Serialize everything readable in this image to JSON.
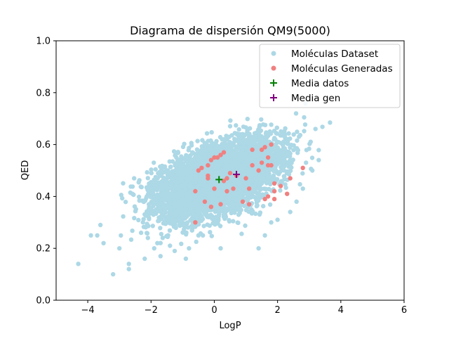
{
  "chart_data": {
    "type": "scatter",
    "title": "Diagrama de dispersión QM9(5000)",
    "xlabel": "LogP",
    "ylabel": "QED",
    "xlim": [
      -5,
      6
    ],
    "ylim": [
      0.0,
      1.0
    ],
    "xticks": [
      "−4",
      "−2",
      "0",
      "2",
      "4",
      "6"
    ],
    "xtick_values": [
      -4,
      -2,
      0,
      2,
      4,
      6
    ],
    "yticks": [
      "0.0",
      "0.2",
      "0.4",
      "0.6",
      "0.8",
      "1.0"
    ],
    "ytick_values": [
      0.0,
      0.2,
      0.4,
      0.6,
      0.8,
      1.0
    ],
    "grid": false,
    "legend_position": "top-right",
    "series": [
      {
        "name": "Moléculas Dataset",
        "color": "#add8e6",
        "marker": "circle",
        "cloud": {
          "count": 5000,
          "x_mean": 0.1,
          "x_std": 0.95,
          "y_mean": 0.465,
          "y_std": 0.065,
          "slope": 0.04
        },
        "points": [
          [
            -4.3,
            0.14
          ],
          [
            -3.9,
            0.25
          ],
          [
            -3.7,
            0.25
          ],
          [
            -3.6,
            0.29
          ],
          [
            -3.5,
            0.22
          ],
          [
            -3.2,
            0.1
          ],
          [
            -3.0,
            0.2
          ],
          [
            -2.7,
            0.14
          ],
          [
            -2.7,
            0.12
          ],
          [
            -2.2,
            0.16
          ],
          [
            -2.1,
            0.24
          ],
          [
            -1.9,
            0.2
          ],
          [
            -1.7,
            0.17
          ],
          [
            -1.4,
            0.21
          ],
          [
            -0.9,
            0.16
          ],
          [
            -0.8,
            0.2
          ],
          [
            0.2,
            0.2
          ],
          [
            1.4,
            0.2
          ],
          [
            1.6,
            0.25
          ],
          [
            -0.5,
            0.25
          ],
          [
            2.0,
            0.31
          ],
          [
            2.4,
            0.34
          ],
          [
            2.6,
            0.38
          ],
          [
            3.3,
            0.54
          ],
          [
            3.1,
            0.5
          ],
          [
            2.9,
            0.53
          ],
          [
            1.7,
            0.64
          ],
          [
            1.4,
            0.65
          ],
          [
            0.9,
            0.64
          ],
          [
            0.3,
            0.62
          ],
          [
            -0.4,
            0.58
          ],
          [
            -1.2,
            0.55
          ],
          [
            2.8,
            0.43
          ],
          [
            1.8,
            0.3
          ],
          [
            -1.8,
            0.22
          ]
        ]
      },
      {
        "name": "Moléculas Generadas",
        "color": "#f08080",
        "marker": "circle",
        "points": [
          [
            -0.6,
            0.3
          ],
          [
            -0.6,
            0.42
          ],
          [
            -0.5,
            0.5
          ],
          [
            -0.4,
            0.51
          ],
          [
            -0.3,
            0.38
          ],
          [
            -0.2,
            0.52
          ],
          [
            -0.2,
            0.48
          ],
          [
            -0.1,
            0.54
          ],
          [
            -0.1,
            0.36
          ],
          [
            -0.2,
            0.47
          ],
          [
            0.0,
            0.43
          ],
          [
            0.0,
            0.55
          ],
          [
            0.1,
            0.55
          ],
          [
            0.2,
            0.37
          ],
          [
            0.2,
            0.56
          ],
          [
            0.3,
            0.57
          ],
          [
            0.3,
            0.46
          ],
          [
            0.4,
            0.42
          ],
          [
            0.5,
            0.49
          ],
          [
            0.6,
            0.43
          ],
          [
            0.7,
            0.48
          ],
          [
            0.9,
            0.38
          ],
          [
            1.0,
            0.47
          ],
          [
            1.1,
            0.43
          ],
          [
            1.1,
            0.37
          ],
          [
            1.2,
            0.52
          ],
          [
            1.2,
            0.58
          ],
          [
            1.4,
            0.5
          ],
          [
            1.5,
            0.58
          ],
          [
            1.6,
            0.59
          ],
          [
            1.5,
            0.53
          ],
          [
            1.7,
            0.52
          ],
          [
            1.7,
            0.55
          ],
          [
            1.8,
            0.52
          ],
          [
            1.8,
            0.6
          ],
          [
            1.9,
            0.42
          ],
          [
            1.9,
            0.45
          ],
          [
            1.9,
            0.39
          ],
          [
            1.6,
            0.39
          ],
          [
            1.7,
            0.4
          ],
          [
            2.1,
            0.44
          ],
          [
            2.3,
            0.41
          ],
          [
            2.4,
            0.47
          ],
          [
            2.8,
            0.51
          ],
          [
            0.4,
            0.47
          ]
        ]
      },
      {
        "name": "Media datos",
        "color": "#008000",
        "marker": "plus",
        "points": [
          [
            0.15,
            0.465
          ]
        ]
      },
      {
        "name": "Media gen",
        "color": "#800080",
        "marker": "plus",
        "points": [
          [
            0.7,
            0.485
          ]
        ]
      }
    ]
  }
}
